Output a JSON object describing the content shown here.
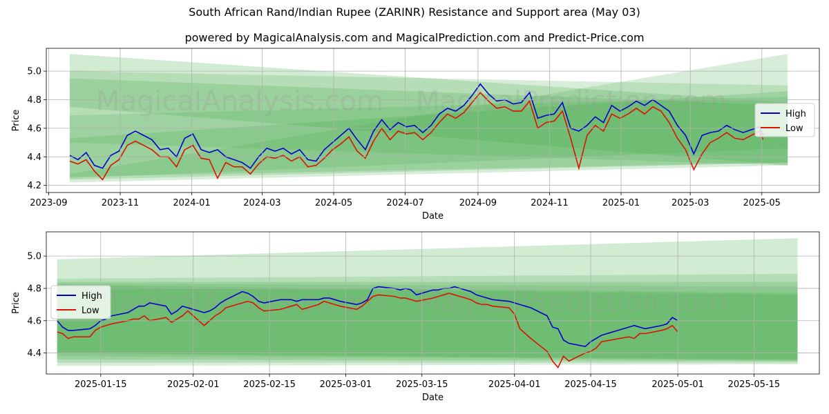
{
  "title": "South African Rand/Indian Rupee (ZARINR) Resistance and Support area (May 03)",
  "subtitle": "powered by MagicalAnalysis.com and MagicalPrediction.com and Predict-Price.com",
  "watermark": {
    "left": "MagicalAnalysis.com",
    "right": "MagicalPrediction.com"
  },
  "colors": {
    "high": "#0000cc",
    "low": "#dd1100",
    "band": "#4caf50",
    "grid": "#b0b0b0"
  },
  "chart_data": [
    {
      "type": "line",
      "xlabel": "Date",
      "ylabel": "Price",
      "ylim": [
        4.15,
        5.16
      ],
      "xlim": [
        "2023-08-30",
        "2025-06-19"
      ],
      "yticks": [
        4.2,
        4.4,
        4.6,
        4.8,
        5.0
      ],
      "xticks": [
        "2023-09",
        "2023-11",
        "2024-01",
        "2024-03",
        "2024-05",
        "2024-07",
        "2024-09",
        "2024-11",
        "2025-01",
        "2025-03",
        "2025-05"
      ],
      "grid": true,
      "legend": "right",
      "bands": [
        {
          "x": [
            "2023-09-19",
            "2025-05-23"
          ],
          "y0": [
            4.75,
            4.34
          ],
          "y1": [
            5.12,
            4.78
          ],
          "opacity": 0.25
        },
        {
          "x": [
            "2023-09-19",
            "2025-05-23"
          ],
          "y0": [
            4.5,
            4.34
          ],
          "y1": [
            5.0,
            4.9
          ],
          "opacity": 0.22
        },
        {
          "x": [
            "2023-09-19",
            "2025-05-23"
          ],
          "y0": [
            4.26,
            4.36
          ],
          "y1": [
            4.95,
            4.76
          ],
          "opacity": 0.25
        },
        {
          "x": [
            "2023-09-19",
            "2025-05-23"
          ],
          "y0": [
            4.25,
            4.46
          ],
          "y1": [
            4.69,
            4.82
          ],
          "opacity": 0.22
        },
        {
          "x": [
            "2023-09-19",
            "2025-05-23"
          ],
          "y0": [
            4.24,
            4.36
          ],
          "y1": [
            4.53,
            4.86
          ],
          "opacity": 0.25
        },
        {
          "x": [
            "2023-09-19",
            "2025-05-23"
          ],
          "y0": [
            4.22,
            4.34
          ],
          "y1": [
            4.28,
            5.12
          ],
          "opacity": 0.22
        }
      ],
      "series": [
        {
          "name": "High",
          "x": [
            "2023-09-19",
            "2023-09-26",
            "2023-10-03",
            "2023-10-10",
            "2023-10-17",
            "2023-10-24",
            "2023-10-31",
            "2023-11-07",
            "2023-11-14",
            "2023-11-21",
            "2023-11-28",
            "2023-12-05",
            "2023-12-12",
            "2023-12-19",
            "2023-12-26",
            "2024-01-02",
            "2024-01-09",
            "2024-01-16",
            "2024-01-23",
            "2024-01-30",
            "2024-02-06",
            "2024-02-13",
            "2024-02-20",
            "2024-02-27",
            "2024-03-05",
            "2024-03-12",
            "2024-03-19",
            "2024-03-26",
            "2024-04-02",
            "2024-04-09",
            "2024-04-16",
            "2024-04-23",
            "2024-04-30",
            "2024-05-07",
            "2024-05-14",
            "2024-05-21",
            "2024-05-28",
            "2024-06-04",
            "2024-06-11",
            "2024-06-18",
            "2024-06-25",
            "2024-07-02",
            "2024-07-09",
            "2024-07-16",
            "2024-07-23",
            "2024-07-30",
            "2024-08-06",
            "2024-08-13",
            "2024-08-20",
            "2024-08-27",
            "2024-09-03",
            "2024-09-10",
            "2024-09-17",
            "2024-09-24",
            "2024-10-01",
            "2024-10-08",
            "2024-10-15",
            "2024-10-22",
            "2024-10-29",
            "2024-11-05",
            "2024-11-12",
            "2024-11-19",
            "2024-11-26",
            "2024-12-03",
            "2024-12-10",
            "2024-12-17",
            "2024-12-24",
            "2024-12-31",
            "2025-01-07",
            "2025-01-14",
            "2025-01-21",
            "2025-01-28",
            "2025-02-04",
            "2025-02-11",
            "2025-02-18",
            "2025-02-25",
            "2025-03-04",
            "2025-03-11",
            "2025-03-18",
            "2025-03-25",
            "2025-04-01",
            "2025-04-08",
            "2025-04-15",
            "2025-04-22",
            "2025-04-29",
            "2025-05-02"
          ],
          "values": [
            4.41,
            4.38,
            4.43,
            4.34,
            4.32,
            4.41,
            4.44,
            4.55,
            4.58,
            4.55,
            4.52,
            4.45,
            4.46,
            4.4,
            4.53,
            4.56,
            4.45,
            4.43,
            4.45,
            4.4,
            4.38,
            4.36,
            4.32,
            4.4,
            4.46,
            4.44,
            4.46,
            4.42,
            4.45,
            4.38,
            4.37,
            4.45,
            4.5,
            4.55,
            4.6,
            4.52,
            4.45,
            4.58,
            4.66,
            4.59,
            4.64,
            4.61,
            4.62,
            4.57,
            4.62,
            4.7,
            4.74,
            4.72,
            4.76,
            4.83,
            4.91,
            4.84,
            4.79,
            4.8,
            4.77,
            4.78,
            4.85,
            4.67,
            4.69,
            4.7,
            4.78,
            4.6,
            4.58,
            4.62,
            4.68,
            4.64,
            4.76,
            4.72,
            4.75,
            4.79,
            4.76,
            4.8,
            4.76,
            4.72,
            4.62,
            4.55,
            4.42,
            4.55,
            4.57,
            4.58,
            4.62,
            4.59,
            4.57,
            4.59,
            4.61,
            4.55
          ]
        },
        {
          "name": "Low",
          "x": [
            "2023-09-19",
            "2023-09-26",
            "2023-10-03",
            "2023-10-10",
            "2023-10-17",
            "2023-10-24",
            "2023-10-31",
            "2023-11-07",
            "2023-11-14",
            "2023-11-21",
            "2023-11-28",
            "2023-12-05",
            "2023-12-12",
            "2023-12-19",
            "2023-12-26",
            "2024-01-02",
            "2024-01-09",
            "2024-01-16",
            "2024-01-23",
            "2024-01-30",
            "2024-02-06",
            "2024-02-13",
            "2024-02-20",
            "2024-02-27",
            "2024-03-05",
            "2024-03-12",
            "2024-03-19",
            "2024-03-26",
            "2024-04-02",
            "2024-04-09",
            "2024-04-16",
            "2024-04-23",
            "2024-04-30",
            "2024-05-07",
            "2024-05-14",
            "2024-05-21",
            "2024-05-28",
            "2024-06-04",
            "2024-06-11",
            "2024-06-18",
            "2024-06-25",
            "2024-07-02",
            "2024-07-09",
            "2024-07-16",
            "2024-07-23",
            "2024-07-30",
            "2024-08-06",
            "2024-08-13",
            "2024-08-20",
            "2024-08-27",
            "2024-09-03",
            "2024-09-10",
            "2024-09-17",
            "2024-09-24",
            "2024-10-01",
            "2024-10-08",
            "2024-10-15",
            "2024-10-22",
            "2024-10-29",
            "2024-11-05",
            "2024-11-12",
            "2024-11-19",
            "2024-11-26",
            "2024-12-03",
            "2024-12-10",
            "2024-12-17",
            "2024-12-24",
            "2024-12-31",
            "2025-01-07",
            "2025-01-14",
            "2025-01-21",
            "2025-01-28",
            "2025-02-04",
            "2025-02-11",
            "2025-02-18",
            "2025-02-25",
            "2025-03-04",
            "2025-03-11",
            "2025-03-18",
            "2025-03-25",
            "2025-04-01",
            "2025-04-08",
            "2025-04-15",
            "2025-04-22",
            "2025-04-29",
            "2025-05-02"
          ],
          "values": [
            4.37,
            4.35,
            4.38,
            4.3,
            4.24,
            4.34,
            4.38,
            4.48,
            4.51,
            4.48,
            4.45,
            4.4,
            4.4,
            4.33,
            4.45,
            4.48,
            4.39,
            4.38,
            4.25,
            4.36,
            4.33,
            4.33,
            4.28,
            4.35,
            4.4,
            4.39,
            4.41,
            4.37,
            4.4,
            4.33,
            4.34,
            4.39,
            4.45,
            4.49,
            4.54,
            4.44,
            4.39,
            4.51,
            4.6,
            4.52,
            4.58,
            4.56,
            4.57,
            4.52,
            4.57,
            4.64,
            4.7,
            4.67,
            4.71,
            4.78,
            4.85,
            4.79,
            4.74,
            4.75,
            4.72,
            4.72,
            4.79,
            4.6,
            4.64,
            4.65,
            4.72,
            4.53,
            4.32,
            4.55,
            4.62,
            4.58,
            4.7,
            4.67,
            4.7,
            4.74,
            4.7,
            4.75,
            4.72,
            4.64,
            4.53,
            4.45,
            4.31,
            4.42,
            4.5,
            4.53,
            4.57,
            4.53,
            4.52,
            4.55,
            4.58,
            4.52
          ]
        }
      ]
    },
    {
      "type": "line",
      "xlabel": "Date",
      "ylabel": "Price",
      "ylim": [
        4.27,
        5.15
      ],
      "xlim": [
        "2025-01-05",
        "2025-05-27"
      ],
      "yticks": [
        4.4,
        4.6,
        4.8,
        5.0
      ],
      "xticks": [
        "2025-01-15",
        "2025-02-01",
        "2025-02-15",
        "2025-03-01",
        "2025-03-15",
        "2025-04-01",
        "2025-04-15",
        "2025-05-01",
        "2025-05-15"
      ],
      "grid": true,
      "legend": "left",
      "bands": [
        {
          "x": [
            "2025-01-07",
            "2025-05-23"
          ],
          "y0": [
            4.34,
            4.34
          ],
          "y1": [
            4.98,
            5.11
          ],
          "opacity": 0.25
        },
        {
          "x": [
            "2025-01-07",
            "2025-05-23"
          ],
          "y0": [
            4.32,
            4.33
          ],
          "y1": [
            4.86,
            4.89
          ],
          "opacity": 0.22
        },
        {
          "x": [
            "2025-01-07",
            "2025-05-23"
          ],
          "y0": [
            4.36,
            4.35
          ],
          "y1": [
            4.84,
            4.84
          ],
          "opacity": 0.25
        },
        {
          "x": [
            "2025-01-07",
            "2025-05-23"
          ],
          "y0": [
            4.38,
            4.36
          ],
          "y1": [
            4.83,
            4.81
          ],
          "opacity": 0.22
        },
        {
          "x": [
            "2025-01-07",
            "2025-05-23"
          ],
          "y0": [
            4.4,
            4.36
          ],
          "y1": [
            4.82,
            4.77
          ],
          "opacity": 0.25
        },
        {
          "x": [
            "2025-01-07",
            "2025-05-23"
          ],
          "y0": [
            4.4,
            4.35
          ],
          "y1": [
            4.81,
            4.76
          ],
          "opacity": 0.22
        }
      ],
      "series": [
        {
          "name": "High",
          "x": [
            "2025-01-07",
            "2025-01-08",
            "2025-01-09",
            "2025-01-10",
            "2025-01-13",
            "2025-01-14",
            "2025-01-15",
            "2025-01-16",
            "2025-01-17",
            "2025-01-20",
            "2025-01-21",
            "2025-01-22",
            "2025-01-23",
            "2025-01-24",
            "2025-01-27",
            "2025-01-28",
            "2025-01-29",
            "2025-01-30",
            "2025-01-31",
            "2025-02-03",
            "2025-02-04",
            "2025-02-05",
            "2025-02-06",
            "2025-02-07",
            "2025-02-10",
            "2025-02-11",
            "2025-02-12",
            "2025-02-13",
            "2025-02-14",
            "2025-02-17",
            "2025-02-18",
            "2025-02-19",
            "2025-02-20",
            "2025-02-21",
            "2025-02-24",
            "2025-02-25",
            "2025-02-26",
            "2025-02-27",
            "2025-02-28",
            "2025-03-03",
            "2025-03-04",
            "2025-03-05",
            "2025-03-06",
            "2025-03-07",
            "2025-03-10",
            "2025-03-11",
            "2025-03-12",
            "2025-03-13",
            "2025-03-14",
            "2025-03-17",
            "2025-03-18",
            "2025-03-19",
            "2025-03-20",
            "2025-03-21",
            "2025-03-24",
            "2025-03-25",
            "2025-03-26",
            "2025-03-27",
            "2025-03-28",
            "2025-03-31",
            "2025-04-01",
            "2025-04-02",
            "2025-04-03",
            "2025-04-04",
            "2025-04-07",
            "2025-04-08",
            "2025-04-09",
            "2025-04-10",
            "2025-04-11",
            "2025-04-14",
            "2025-04-15",
            "2025-04-16",
            "2025-04-17",
            "2025-04-22",
            "2025-04-23",
            "2025-04-24",
            "2025-04-25",
            "2025-04-28",
            "2025-04-29",
            "2025-04-30",
            "2025-05-01"
          ],
          "values": [
            4.6,
            4.56,
            4.54,
            4.54,
            4.55,
            4.57,
            4.6,
            4.61,
            4.63,
            4.65,
            4.67,
            4.69,
            4.69,
            4.71,
            4.69,
            4.64,
            4.66,
            4.69,
            4.68,
            4.65,
            4.66,
            4.68,
            4.71,
            4.73,
            4.78,
            4.77,
            4.75,
            4.72,
            4.71,
            4.73,
            4.73,
            4.73,
            4.72,
            4.73,
            4.73,
            4.74,
            4.74,
            4.73,
            4.72,
            4.7,
            4.71,
            4.73,
            4.8,
            4.81,
            4.8,
            4.79,
            4.8,
            4.79,
            4.76,
            4.79,
            4.79,
            4.8,
            4.8,
            4.81,
            4.78,
            4.76,
            4.75,
            4.74,
            4.73,
            4.72,
            4.71,
            4.7,
            4.69,
            4.68,
            4.63,
            4.56,
            4.55,
            4.48,
            4.46,
            4.44,
            4.47,
            4.49,
            4.51,
            4.56,
            4.57,
            4.56,
            4.55,
            4.57,
            4.58,
            4.62,
            4.6
          ]
        },
        {
          "name": "Low",
          "x": [
            "2025-01-07",
            "2025-01-08",
            "2025-01-09",
            "2025-01-10",
            "2025-01-13",
            "2025-01-14",
            "2025-01-15",
            "2025-01-16",
            "2025-01-17",
            "2025-01-20",
            "2025-01-21",
            "2025-01-22",
            "2025-01-23",
            "2025-01-24",
            "2025-01-27",
            "2025-01-28",
            "2025-01-29",
            "2025-01-30",
            "2025-01-31",
            "2025-02-03",
            "2025-02-04",
            "2025-02-05",
            "2025-02-06",
            "2025-02-07",
            "2025-02-10",
            "2025-02-11",
            "2025-02-12",
            "2025-02-13",
            "2025-02-14",
            "2025-02-17",
            "2025-02-18",
            "2025-02-19",
            "2025-02-20",
            "2025-02-21",
            "2025-02-24",
            "2025-02-25",
            "2025-02-26",
            "2025-02-27",
            "2025-02-28",
            "2025-03-03",
            "2025-03-04",
            "2025-03-05",
            "2025-03-06",
            "2025-03-07",
            "2025-03-10",
            "2025-03-11",
            "2025-03-12",
            "2025-03-13",
            "2025-03-14",
            "2025-03-17",
            "2025-03-18",
            "2025-03-19",
            "2025-03-20",
            "2025-03-21",
            "2025-03-24",
            "2025-03-25",
            "2025-03-26",
            "2025-03-27",
            "2025-03-28",
            "2025-03-31",
            "2025-04-01",
            "2025-04-02",
            "2025-04-03",
            "2025-04-04",
            "2025-04-07",
            "2025-04-08",
            "2025-04-09",
            "2025-04-10",
            "2025-04-11",
            "2025-04-14",
            "2025-04-15",
            "2025-04-16",
            "2025-04-17",
            "2025-04-22",
            "2025-04-23",
            "2025-04-24",
            "2025-04-25",
            "2025-04-28",
            "2025-04-29",
            "2025-04-30",
            "2025-05-01"
          ],
          "values": [
            4.53,
            4.52,
            4.49,
            4.5,
            4.5,
            4.54,
            4.56,
            4.57,
            4.58,
            4.6,
            4.61,
            4.61,
            4.63,
            4.6,
            4.62,
            4.59,
            4.61,
            4.63,
            4.66,
            4.57,
            4.6,
            4.63,
            4.65,
            4.68,
            4.71,
            4.72,
            4.71,
            4.68,
            4.66,
            4.67,
            4.68,
            4.69,
            4.7,
            4.67,
            4.7,
            4.72,
            4.71,
            4.7,
            4.69,
            4.67,
            4.69,
            4.72,
            4.75,
            4.76,
            4.75,
            4.74,
            4.74,
            4.73,
            4.72,
            4.74,
            4.75,
            4.76,
            4.77,
            4.76,
            4.73,
            4.71,
            4.7,
            4.7,
            4.69,
            4.68,
            4.64,
            4.55,
            4.52,
            4.49,
            4.41,
            4.35,
            4.31,
            4.38,
            4.35,
            4.4,
            4.41,
            4.43,
            4.47,
            4.5,
            4.49,
            4.52,
            4.52,
            4.54,
            4.55,
            4.57,
            4.53
          ]
        }
      ]
    }
  ]
}
